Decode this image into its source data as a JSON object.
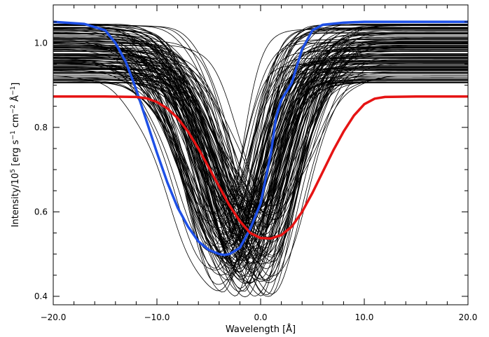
{
  "chart_data": {
    "type": "line",
    "title": "",
    "xlabel": "Wavelength [Å]",
    "ylabel_parts": {
      "main": "Intensity/10",
      "exp5": "5",
      "units_a": " [erg s",
      "m1a": "−1",
      "units_b": " cm",
      "m2": "−2",
      "units_c": " Å",
      "m1b": "−1",
      "close": "]"
    },
    "xlim": [
      -20.0,
      20.0
    ],
    "ylim": [
      0.38,
      1.09
    ],
    "xticks": [
      -20.0,
      -10.0,
      0.0,
      10.0,
      20.0
    ],
    "xtick_labels": [
      "−20.0",
      "−10.0",
      "0.0",
      "10.0",
      "20.0"
    ],
    "yticks": [
      0.4,
      0.6,
      0.8,
      1.0
    ],
    "ytick_labels": [
      "0.4",
      "0.6",
      "0.8",
      "1.0"
    ],
    "grid": false,
    "legend": "none",
    "ensemble": {
      "count": 140,
      "color": "#000000",
      "continuum_range": [
        0.905,
        1.045
      ],
      "center_range": [
        -4.5,
        1.5
      ],
      "min_range": [
        0.4,
        0.62
      ],
      "width_range": [
        3.2,
        5.6
      ]
    },
    "series": [
      {
        "color": "#1e50e6",
        "x": [
          -20,
          -17,
          -15,
          -14,
          -13,
          -12,
          -11,
          -10,
          -9,
          -8,
          -7,
          -6,
          -5,
          -4,
          -3.5,
          -3,
          -2,
          -1,
          0,
          1,
          1.5,
          2,
          3,
          4,
          5,
          6,
          8,
          10,
          15,
          20
        ],
        "y": [
          1.05,
          1.045,
          1.03,
          1.0,
          0.955,
          0.89,
          0.815,
          0.74,
          0.67,
          0.61,
          0.565,
          0.53,
          0.51,
          0.5,
          0.498,
          0.5,
          0.515,
          0.56,
          0.62,
          0.74,
          0.825,
          0.865,
          0.905,
          0.985,
          1.03,
          1.043,
          1.048,
          1.05,
          1.05,
          1.05
        ]
      },
      {
        "color": "#e61414",
        "x": [
          -20,
          -15,
          -12,
          -11,
          -10,
          -9,
          -8,
          -7,
          -6,
          -5,
          -4,
          -3,
          -2,
          -1,
          0,
          1,
          2,
          3,
          4,
          5,
          6,
          7,
          8,
          9,
          10,
          11,
          12,
          15,
          20
        ],
        "y": [
          0.873,
          0.873,
          0.872,
          0.869,
          0.86,
          0.845,
          0.822,
          0.79,
          0.75,
          0.705,
          0.66,
          0.615,
          0.578,
          0.55,
          0.538,
          0.537,
          0.545,
          0.565,
          0.6,
          0.645,
          0.695,
          0.745,
          0.79,
          0.828,
          0.855,
          0.868,
          0.872,
          0.873,
          0.873
        ]
      }
    ]
  }
}
